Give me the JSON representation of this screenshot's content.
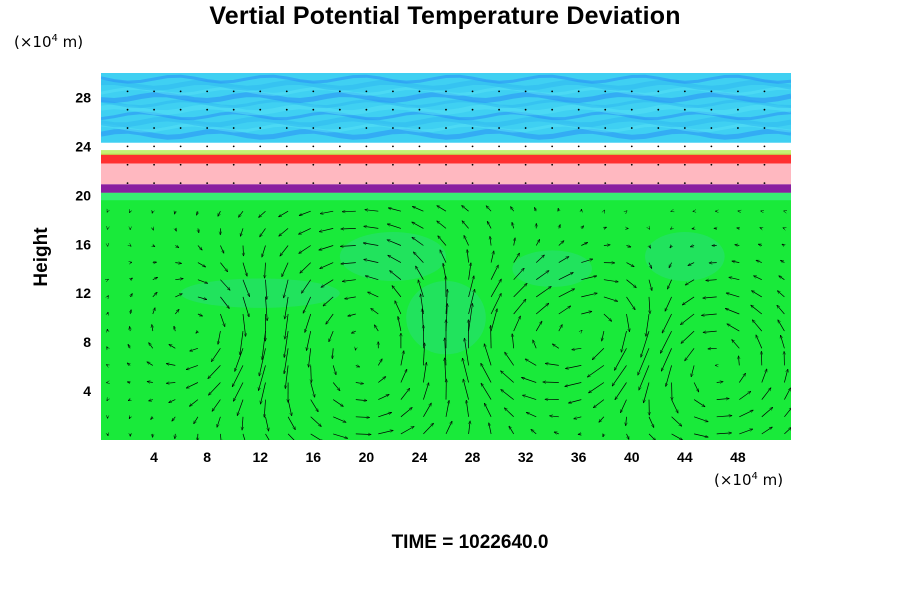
{
  "chart_data": {
    "type": "heatmap",
    "title": "Vertial Potential Temperature Deviation",
    "xlabel": "",
    "ylabel": "Height",
    "x_unit": {
      "base": "(×10",
      "exp": "4",
      "rest": " m)"
    },
    "y_unit": {
      "base": "(×10",
      "exp": "4",
      "rest": " m)"
    },
    "xlim": [
      0,
      52
    ],
    "ylim": [
      0,
      30
    ],
    "x_ticks": [
      "4",
      "8",
      "12",
      "16",
      "20",
      "24",
      "28",
      "32",
      "36",
      "40",
      "44",
      "48"
    ],
    "y_ticks": [
      "4",
      "8",
      "12",
      "16",
      "20",
      "24",
      "28"
    ],
    "layers": [
      {
        "name": "upper-band",
        "y0": 24.3,
        "y1": 30,
        "color": "#3fd0f2"
      },
      {
        "name": "red-line",
        "y0": 22.6,
        "y1": 23.4,
        "color": "#ff3030"
      },
      {
        "name": "pink-band",
        "y0": 20.9,
        "y1": 22.6,
        "color": "#ffb8c0"
      },
      {
        "name": "purple-band",
        "y0": 20.2,
        "y1": 20.9,
        "color": "#8a1fa0"
      },
      {
        "name": "lower-field",
        "y0": 0,
        "y1": 20.2,
        "color": "#19ea3a"
      }
    ],
    "vortices": [
      {
        "cx": 19.5,
        "cy": 7.5,
        "r": 8,
        "dir": 1
      },
      {
        "cx": 30.5,
        "cy": 7.5,
        "r": 4,
        "dir": -1
      },
      {
        "cx": 46.0,
        "cy": 6.0,
        "r": 4.5,
        "dir": 1
      },
      {
        "cx": 9.0,
        "cy": 9.0,
        "r": 4,
        "dir": -1
      },
      {
        "cx": 38.0,
        "cy": 9.0,
        "r": 3.5,
        "dir": -1
      }
    ],
    "footer": {
      "label": "TIME = ",
      "value": "1022640.0"
    }
  },
  "colors": {
    "upper": "#3fd0f2",
    "blue_streak": "#2a8ef5",
    "green": "#19ea3a"
  }
}
